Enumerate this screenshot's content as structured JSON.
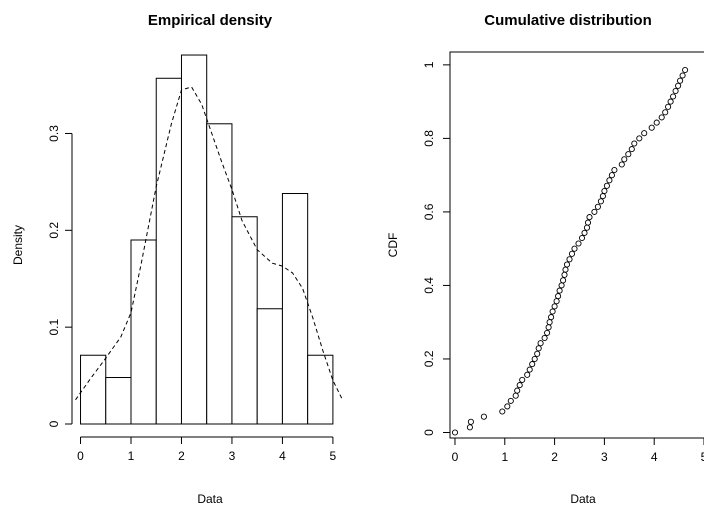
{
  "chart_data": [
    {
      "type": "histogram",
      "title": "Empirical density",
      "xlabel": "Data",
      "ylabel": "Density",
      "xlim": [
        -0.05,
        5.2
      ],
      "ylim": [
        0,
        0.38
      ],
      "x_ticks": [
        0,
        1,
        2,
        3,
        4,
        5
      ],
      "y_ticks": [
        0.0,
        0.1,
        0.2,
        0.3
      ],
      "bins": [
        {
          "from": 0.0,
          "to": 0.5,
          "density": 0.071
        },
        {
          "from": 0.5,
          "to": 1.0,
          "density": 0.048
        },
        {
          "from": 1.0,
          "to": 1.5,
          "density": 0.19
        },
        {
          "from": 1.5,
          "to": 2.0,
          "density": 0.357
        },
        {
          "from": 2.0,
          "to": 2.5,
          "density": 0.381
        },
        {
          "from": 2.5,
          "to": 3.0,
          "density": 0.31
        },
        {
          "from": 3.0,
          "to": 3.5,
          "density": 0.214
        },
        {
          "from": 3.5,
          "to": 4.0,
          "density": 0.119
        },
        {
          "from": 4.0,
          "to": 4.5,
          "density": 0.238
        },
        {
          "from": 4.5,
          "to": 5.0,
          "density": 0.071
        }
      ],
      "density_curve": {
        "style": "dashed",
        "x": [
          -0.1,
          0.2,
          0.5,
          0.8,
          1.0,
          1.2,
          1.5,
          1.8,
          2.0,
          2.2,
          2.4,
          2.6,
          2.8,
          3.0,
          3.2,
          3.5,
          3.8,
          4.0,
          4.2,
          4.4,
          4.6,
          4.8,
          5.0,
          5.2
        ],
        "y": [
          0.025,
          0.047,
          0.068,
          0.09,
          0.115,
          0.165,
          0.245,
          0.31,
          0.345,
          0.348,
          0.33,
          0.3,
          0.27,
          0.242,
          0.21,
          0.18,
          0.166,
          0.163,
          0.156,
          0.14,
          0.11,
          0.076,
          0.045,
          0.024
        ]
      }
    },
    {
      "type": "scatter",
      "title": "Cumulative distribution",
      "xlabel": "Data",
      "ylabel": "CDF",
      "xlim": [
        -0.1,
        5.0
      ],
      "ylim": [
        -0.015,
        1.035
      ],
      "x_ticks": [
        0,
        1,
        2,
        3,
        4,
        5
      ],
      "y_ticks": [
        0.0,
        0.2,
        0.4,
        0.6,
        0.8,
        1.0
      ],
      "points": {
        "x": [
          0.0,
          0.3,
          0.32,
          0.58,
          0.95,
          1.05,
          1.12,
          1.22,
          1.25,
          1.3,
          1.35,
          1.45,
          1.5,
          1.55,
          1.6,
          1.65,
          1.68,
          1.72,
          1.8,
          1.85,
          1.88,
          1.9,
          1.93,
          1.96,
          2.0,
          2.04,
          2.07,
          2.1,
          2.14,
          2.17,
          2.2,
          2.22,
          2.25,
          2.3,
          2.35,
          2.4,
          2.48,
          2.55,
          2.6,
          2.65,
          2.67,
          2.7,
          2.8,
          2.87,
          2.93,
          2.97,
          3.0,
          3.05,
          3.1,
          3.15,
          3.2,
          3.35,
          3.4,
          3.48,
          3.55,
          3.6,
          3.7,
          3.8,
          3.95,
          4.05,
          4.15,
          4.22,
          4.28,
          4.33,
          4.38,
          4.43,
          4.48,
          4.52,
          4.57,
          4.62
        ],
        "y": [
          0.0,
          0.014,
          0.029,
          0.043,
          0.057,
          0.071,
          0.086,
          0.1,
          0.114,
          0.129,
          0.143,
          0.157,
          0.171,
          0.186,
          0.2,
          0.214,
          0.229,
          0.243,
          0.257,
          0.271,
          0.286,
          0.3,
          0.314,
          0.329,
          0.343,
          0.357,
          0.371,
          0.386,
          0.4,
          0.414,
          0.429,
          0.443,
          0.457,
          0.471,
          0.486,
          0.5,
          0.514,
          0.529,
          0.543,
          0.557,
          0.571,
          0.586,
          0.6,
          0.614,
          0.629,
          0.643,
          0.657,
          0.671,
          0.686,
          0.7,
          0.714,
          0.729,
          0.743,
          0.757,
          0.771,
          0.786,
          0.8,
          0.814,
          0.829,
          0.843,
          0.857,
          0.871,
          0.886,
          0.9,
          0.914,
          0.929,
          0.943,
          0.957,
          0.971,
          0.986
        ]
      }
    }
  ]
}
